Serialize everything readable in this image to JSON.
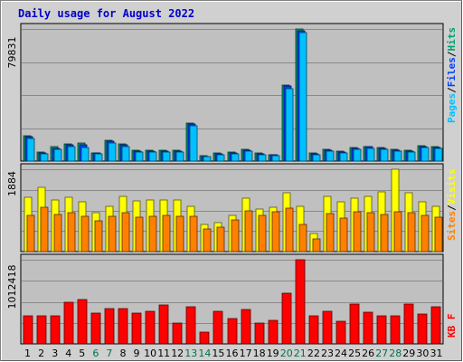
{
  "chart_data": {
    "type": "bar",
    "title": "Daily usage for August 2022",
    "days": [
      "1",
      "2",
      "3",
      "4",
      "5",
      "6",
      "7",
      "8",
      "9",
      "10",
      "11",
      "12",
      "13",
      "14",
      "15",
      "16",
      "17",
      "18",
      "19",
      "20",
      "21",
      "22",
      "23",
      "24",
      "25",
      "26",
      "27",
      "28",
      "29",
      "30",
      "31"
    ],
    "weekend_days": [
      "6",
      "7",
      "13",
      "14",
      "20",
      "21",
      "27",
      "28"
    ],
    "colors": {
      "title": "#0000c8",
      "pages": "#00c0ff",
      "files": "#0040ff",
      "hits": "#009f6f",
      "sites": "#ff8000",
      "visits": "#ffff00",
      "kbytes": "#ff0000",
      "weekday_label": "#000000",
      "weekend_label": "#007050",
      "plot_bg": "#c0c0c0",
      "frame_bg": "#d0d0d0"
    },
    "panels": [
      {
        "id": "hits-files-pages",
        "ymax_label": "79831",
        "ymax": 79831,
        "legend": [
          {
            "key": "pages",
            "text": "Pages"
          },
          {
            "key": "sep1",
            "text": "/"
          },
          {
            "key": "files",
            "text": "Files"
          },
          {
            "key": "sep2",
            "text": "/"
          },
          {
            "key": "hits",
            "text": "Hits"
          }
        ],
        "series": [
          {
            "key": "hits",
            "values": [
              15300,
              5400,
              8600,
              10200,
              10700,
              5100,
              12600,
              10400,
              6600,
              6600,
              6600,
              6600,
              23200,
              3200,
              4700,
              5400,
              7200,
              4700,
              4100,
              46100,
              79600,
              4700,
              7000,
              6100,
              8300,
              9000,
              8300,
              7000,
              6600,
              9200,
              8600
            ]
          },
          {
            "key": "files",
            "values": [
              14500,
              5000,
              7900,
              9600,
              9600,
              4700,
              12000,
              9600,
              6100,
              6100,
              6100,
              6100,
              22400,
              3000,
              4400,
              5000,
              6700,
              4400,
              3800,
              45300,
              79000,
              4400,
              6600,
              5700,
              7900,
              8600,
              7900,
              6600,
              6100,
              8900,
              8300
            ]
          },
          {
            "key": "pages",
            "values": [
              13500,
              4600,
              7000,
              8500,
              8300,
              4200,
              11200,
              8700,
              5600,
              5600,
              5600,
              5600,
              21200,
              2700,
              3900,
              4600,
              6100,
              3900,
              3400,
              43800,
              77800,
              3900,
              5800,
              5100,
              7000,
              7600,
              7000,
              5800,
              5400,
              8000,
              7500
            ]
          }
        ]
      },
      {
        "id": "visits-sites",
        "ymax_label": "1884",
        "ymax": 1884,
        "legend": [
          {
            "key": "sites",
            "text": "Sites"
          },
          {
            "key": "sep1",
            "text": "/"
          },
          {
            "key": "visits",
            "text": "Visits"
          }
        ],
        "series": [
          {
            "key": "visits",
            "values": [
              1240,
              1480,
              1190,
              1240,
              1140,
              900,
              1040,
              1270,
              1150,
              1180,
              1170,
              1180,
              1030,
              620,
              660,
              820,
              1220,
              970,
              1010,
              1340,
              1040,
              420,
              1270,
              1130,
              1220,
              1260,
              1360,
              1884,
              1340,
              1130,
              1030
            ]
          },
          {
            "key": "sites",
            "values": [
              820,
              1010,
              850,
              890,
              810,
              700,
              810,
              880,
              790,
              800,
              820,
              800,
              810,
              520,
              550,
              730,
              930,
              830,
              910,
              990,
              630,
              300,
              870,
              760,
              910,
              900,
              840,
              910,
              890,
              830,
              780
            ]
          }
        ]
      },
      {
        "id": "kbytes",
        "ymax_label": "1012418",
        "ymax": 1012418,
        "legend": [
          {
            "key": "kbytes",
            "text": "KB F"
          }
        ],
        "series": [
          {
            "key": "kbytes",
            "values": [
              340000,
              340000,
              340000,
              500000,
              530000,
              370000,
              420000,
              420000,
              370000,
              390000,
              470000,
              250000,
              450000,
              140000,
              390000,
              300000,
              410000,
              250000,
              280000,
              610000,
              1012418,
              340000,
              390000,
              270000,
              480000,
              380000,
              340000,
              340000,
              480000,
              360000,
              450000
            ]
          }
        ]
      }
    ]
  }
}
